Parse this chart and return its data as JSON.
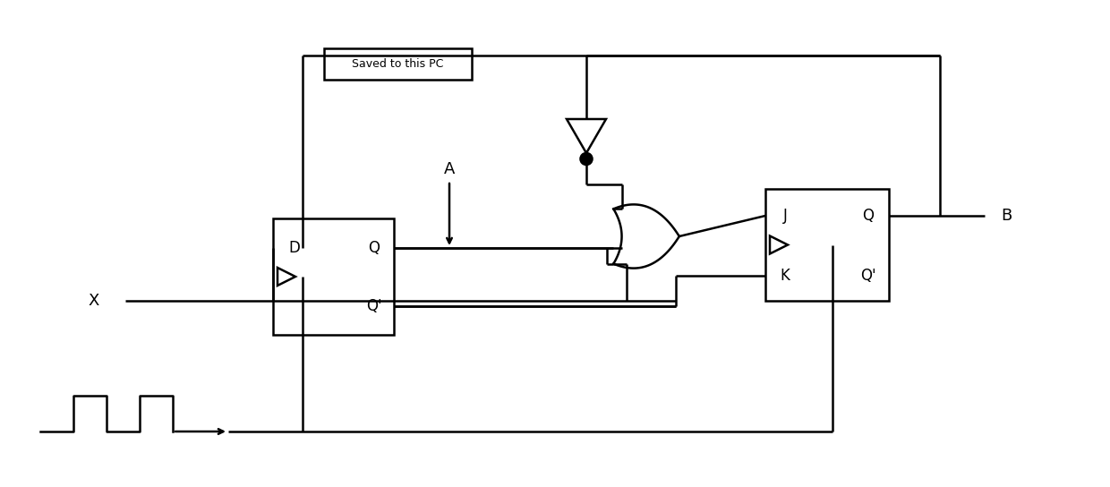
{
  "bg_color": "#ffffff",
  "line_color": "#000000",
  "line_width": 1.8,
  "fig_width": 12.4,
  "fig_height": 5.44,
  "dpi": 100,
  "label_A": "A",
  "label_B": "B",
  "label_X": "X",
  "label_D": "D",
  "label_Q1": "Q",
  "label_Q1p": "Q'",
  "label_J": "J",
  "label_K": "K",
  "label_Q2": "Q",
  "label_Q2p": "Q'",
  "saved_label": "Saved to this PC"
}
